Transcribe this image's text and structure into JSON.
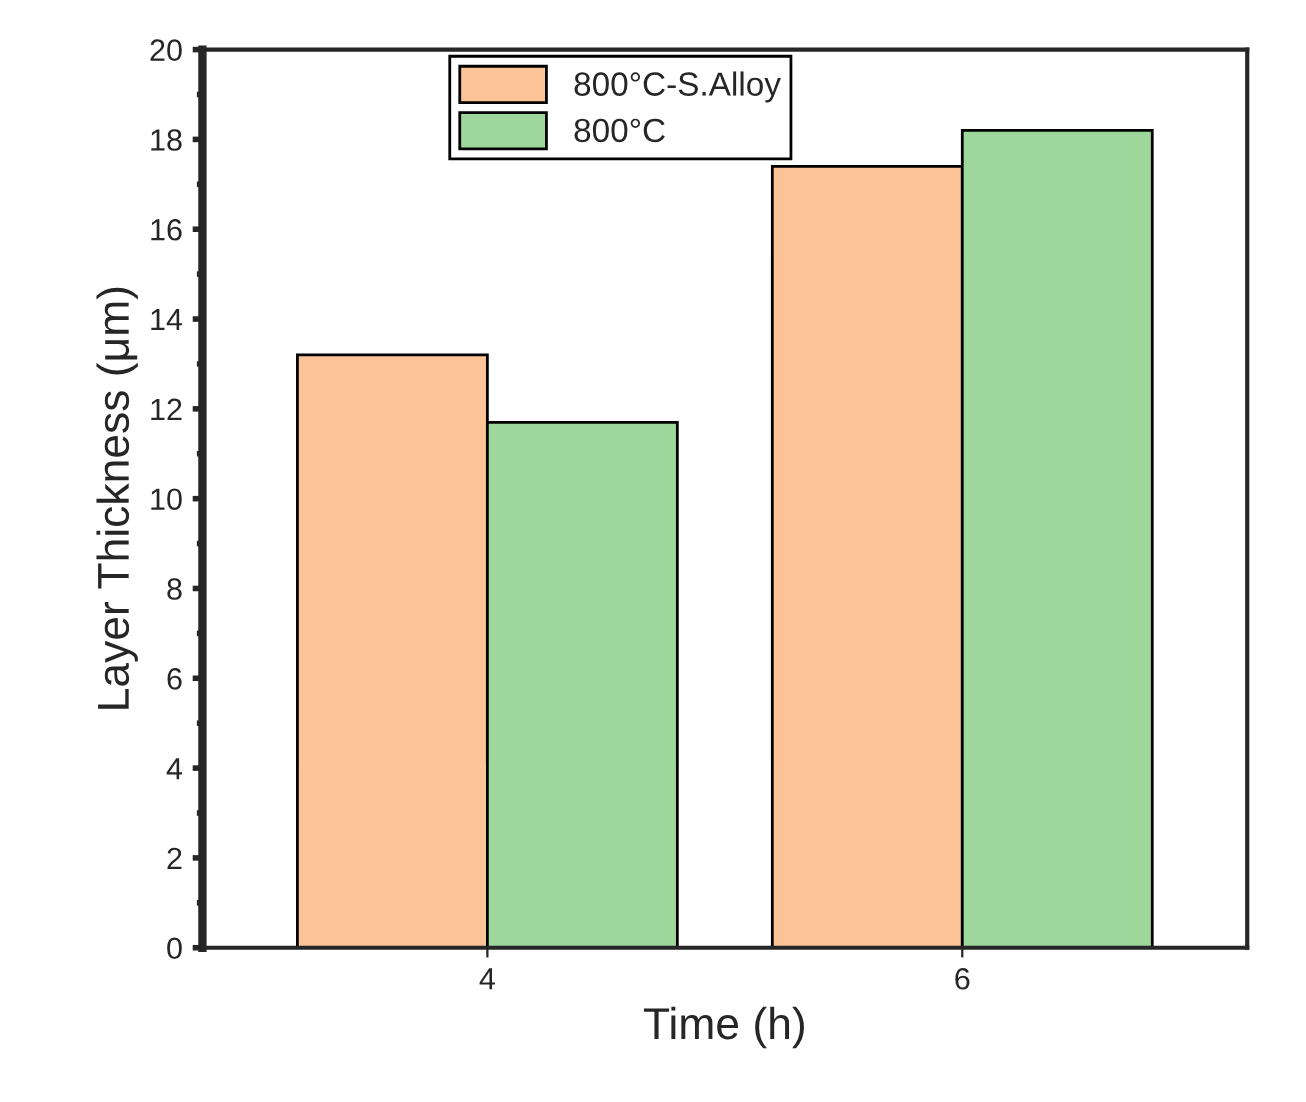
{
  "chart_data": {
    "type": "bar",
    "xlabel": "Time (h)",
    "ylabel": "Layer Thickness (μm)",
    "categories": [
      "4",
      "6"
    ],
    "series": [
      {
        "name": "800°C-S.Alloy",
        "color": "#fbc396",
        "values": [
          13.2,
          17.4
        ]
      },
      {
        "name": "800°C",
        "color": "#9ed79b",
        "values": [
          11.7,
          18.2
        ]
      }
    ],
    "ylim": [
      0,
      20
    ],
    "yticks": [
      0,
      2,
      4,
      6,
      8,
      10,
      12,
      14,
      16,
      18,
      20
    ],
    "grid": false,
    "legend": "top"
  }
}
